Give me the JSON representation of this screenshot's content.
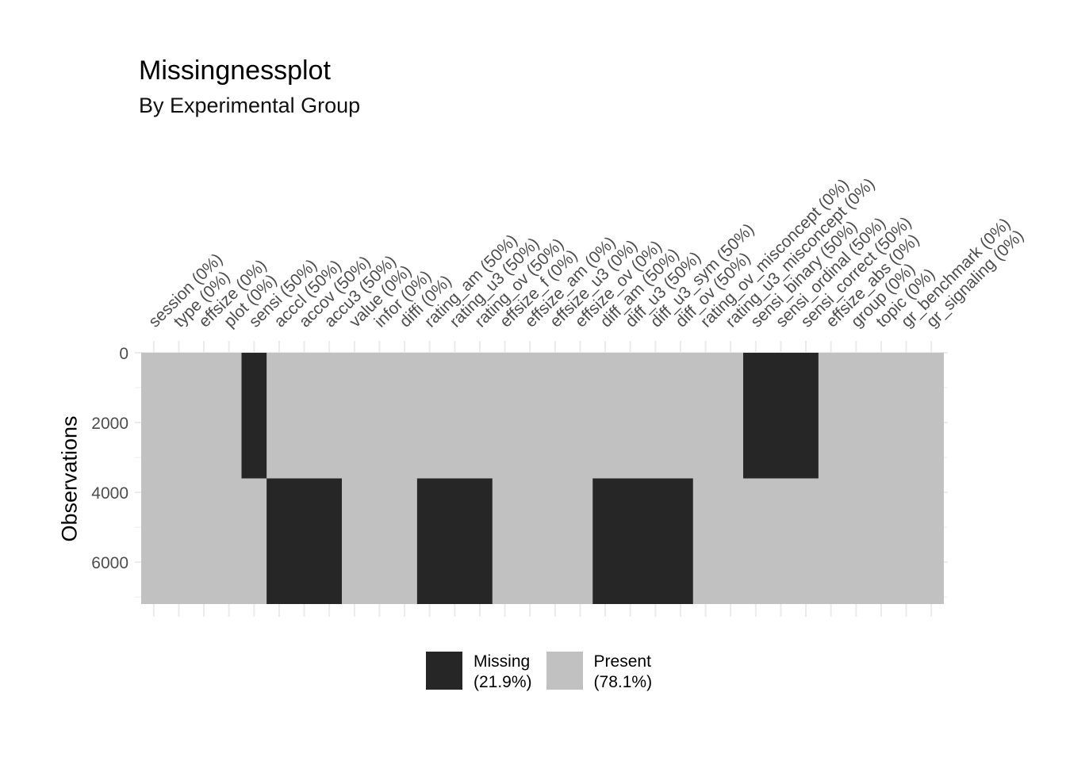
{
  "chart_data": {
    "type": "heatmap",
    "title": "Missingnessplot",
    "subtitle": "By Experimental Group",
    "xlabel": "",
    "ylabel": "Observations",
    "ylim": [
      0,
      7200
    ],
    "y_ticks": [
      "0",
      "2000",
      "4000",
      "6000"
    ],
    "y_tick_values": [
      0,
      2000,
      4000,
      6000
    ],
    "columns": [
      "session (0%)",
      "type (0%)",
      "effsize (0%)",
      "plot (0%)",
      "sensi (50%)",
      "acccl (50%)",
      "accov (50%)",
      "accu3 (50%)",
      "value (0%)",
      "infor (0%)",
      "diffi (0%)",
      "rating_am (50%)",
      "rating_u3 (50%)",
      "rating_ov (50%)",
      "effsize_f (0%)",
      "effsize_am (0%)",
      "effsize_u3 (0%)",
      "effsize_ov (0%)",
      "diff_am (50%)",
      "diff_u3 (50%)",
      "diff_u3_sym (50%)",
      "diff_ov (50%)",
      "rating_ov_misconcept (0%)",
      "rating_u3_misconcept (0%)",
      "sensi_binary (50%)",
      "sensi_ordinal (50%)",
      "sensi_correct (50%)",
      "effsize_abs (0%)",
      "group (0%)",
      "topic (0%)",
      "gr_benchmark (0%)",
      "gr_signaling (0%)"
    ],
    "missing_blocks": [
      {
        "col_start": 4,
        "col_end": 4,
        "obs_start": 0,
        "obs_end": 3600
      },
      {
        "col_start": 5,
        "col_end": 7,
        "obs_start": 3600,
        "obs_end": 7200
      },
      {
        "col_start": 11,
        "col_end": 13,
        "obs_start": 3600,
        "obs_end": 7200
      },
      {
        "col_start": 18,
        "col_end": 21,
        "obs_start": 3600,
        "obs_end": 7200
      },
      {
        "col_start": 24,
        "col_end": 26,
        "obs_start": 0,
        "obs_end": 3600
      }
    ],
    "legend": [
      {
        "name": "Missing",
        "percent": "(21.9%)",
        "color": "#262626"
      },
      {
        "name": "Present",
        "percent": "(78.1%)",
        "color": "#c1c1c1"
      }
    ],
    "legend_position": "bottom",
    "grid": true
  }
}
